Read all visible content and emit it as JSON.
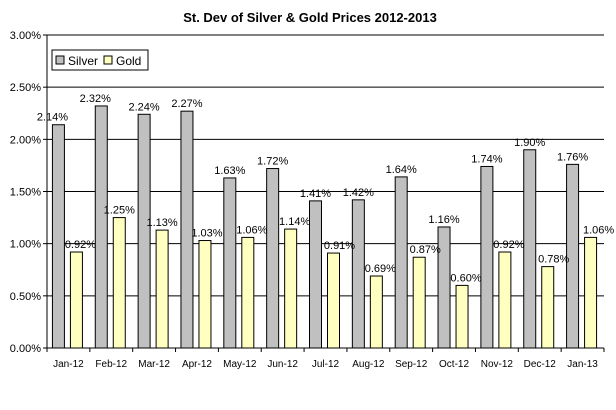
{
  "chart_data": {
    "type": "bar",
    "title": "St. Dev of Silver & Gold Prices  2012-2013",
    "xlabel": "",
    "ylabel": "",
    "ylim": [
      0,
      0.03
    ],
    "yticks": [
      "0.00%",
      "0.50%",
      "1.00%",
      "1.50%",
      "2.00%",
      "2.50%",
      "3.00%"
    ],
    "grid": true,
    "legend_position": "top-left",
    "categories": [
      "Jan-12",
      "Feb-12",
      "Mar-12",
      "Apr-12",
      "May-12",
      "Jun-12",
      "Jul-12",
      "Aug-12",
      "Sep-12",
      "Oct-12",
      "Nov-12",
      "Dec-12",
      "Jan-13"
    ],
    "series": [
      {
        "name": "Silver",
        "color": "#c0c0c0",
        "values": [
          0.0214,
          0.0232,
          0.0224,
          0.0227,
          0.0163,
          0.0172,
          0.0141,
          0.0142,
          0.0164,
          0.0116,
          0.0174,
          0.019,
          0.0176
        ],
        "labels": [
          "2.14%",
          "2.32%",
          "2.24%",
          "2.27%",
          "1.63%",
          "1.72%",
          "1.41%",
          "1.42%",
          "1.64%",
          "1.16%",
          "1.74%",
          "1.90%",
          "1.76%"
        ]
      },
      {
        "name": "Gold",
        "color": "#ffffc0",
        "values": [
          0.0092,
          0.0125,
          0.0113,
          0.0103,
          0.0106,
          0.0114,
          0.0091,
          0.0069,
          0.0087,
          0.006,
          0.0092,
          0.0078,
          0.0106
        ],
        "labels": [
          "0.92%",
          "1.25%",
          "1.13%",
          "1.03%",
          "1.06%",
          "1.14%",
          "0.91%",
          "0.69%",
          "0.87%",
          "0.60%",
          "0.92%",
          "0.78%",
          "1.06%"
        ]
      }
    ]
  }
}
